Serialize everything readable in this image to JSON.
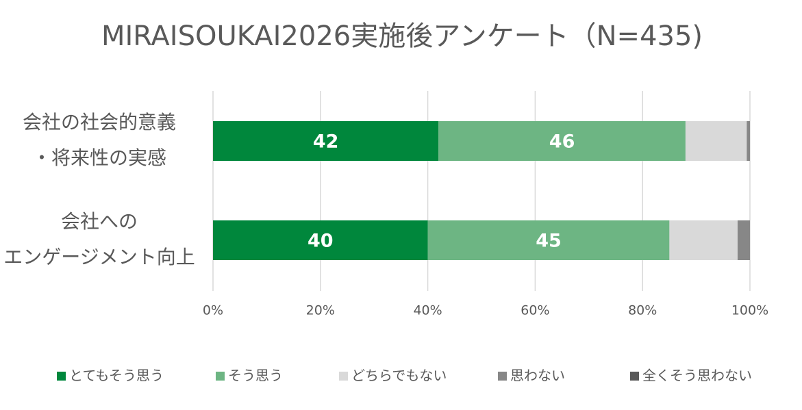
{
  "chart_data": {
    "type": "stacked-barh",
    "title": "MIRAISOUKAI2026実施後アンケート（N=435)",
    "categories": [
      [
        "会社の社会的意義",
        "・将来性の実感"
      ],
      [
        "会社への",
        "エンゲージメント向上"
      ]
    ],
    "series": [
      {
        "name": "とてもそう思う",
        "color": "#00873c",
        "values": [
          42,
          40
        ],
        "labels": true
      },
      {
        "name": "そう思う",
        "color": "#6db583",
        "values": [
          46,
          45
        ],
        "labels": true
      },
      {
        "name": "どちらでもない",
        "color": "#d9d9d9",
        "values": [
          11.4,
          12.7
        ],
        "labels": false
      },
      {
        "name": "思わない",
        "color": "#878787",
        "values": [
          0.6,
          2.3
        ],
        "labels": false
      },
      {
        "name": "全くそう思わない",
        "color": "#595959",
        "values": [
          0,
          0
        ],
        "labels": false
      }
    ],
    "xlim": [
      0,
      100
    ],
    "xticks": [
      {
        "value": 0,
        "label": "0%"
      },
      {
        "value": 20,
        "label": "20%"
      },
      {
        "value": 40,
        "label": "40%"
      },
      {
        "value": 60,
        "label": "60%"
      },
      {
        "value": 80,
        "label": "80%"
      },
      {
        "value": 100,
        "label": "100%"
      }
    ],
    "grid": true,
    "legend": "bottom"
  }
}
